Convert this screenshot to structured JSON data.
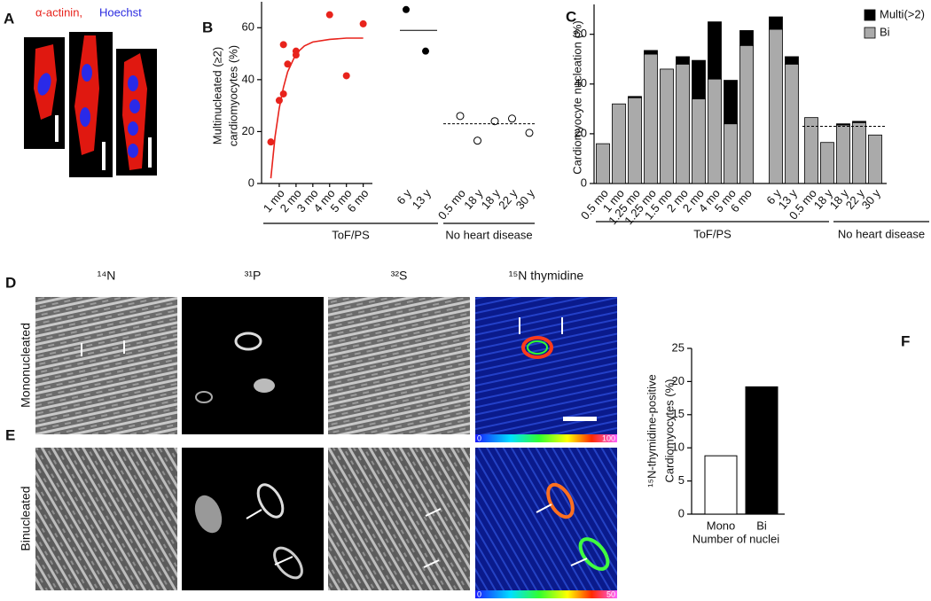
{
  "panel_labels": [
    "A",
    "B",
    "C",
    "D",
    "E",
    "F"
  ],
  "panel_a": {
    "stain_1": "α-actinin,",
    "stain_2": "Hoechst"
  },
  "chart_data": [
    {
      "type": "scatter",
      "y_label": [
        "Multinucleated (≥2)",
        "cardiomyocytes (%)"
      ],
      "ylim": [
        0,
        70
      ],
      "yticks": [
        0,
        20,
        40,
        60
      ],
      "infants": {
        "color": "#e8231c",
        "xlim": [
          0,
          6.6
        ],
        "xticks": [
          {
            "value": 1,
            "label": "1 mo"
          },
          {
            "value": 2,
            "label": "2 mo"
          },
          {
            "value": 3,
            "label": "3 mo"
          },
          {
            "value": 4,
            "label": "4 mo"
          },
          {
            "value": 5,
            "label": "5 mo"
          },
          {
            "value": 6,
            "label": "6 mo"
          }
        ],
        "x": [
          0.5,
          1,
          1.25,
          1.25,
          1.5,
          2,
          2,
          4,
          5,
          6
        ],
        "values": [
          16,
          32,
          34.5,
          53.5,
          46,
          51,
          49.5,
          65,
          41.5,
          61.5
        ],
        "fit": {
          "x": [
            0.5,
            0.75,
            1,
            1.25,
            1.5,
            2,
            2.5,
            3,
            4,
            5,
            6
          ],
          "values": [
            2,
            18,
            29,
            37,
            43,
            50,
            53,
            54.5,
            55.5,
            56,
            56
          ]
        }
      },
      "older": {
        "color": "#000000",
        "categories": [
          "6 y",
          "13 y"
        ],
        "values": [
          67,
          51
        ],
        "mean": 59
      },
      "controls": {
        "categories": [
          "0.5 mo",
          "18 y",
          "18 y",
          "22 y",
          "30 y"
        ],
        "values": [
          26,
          16.5,
          24,
          25,
          19.5
        ],
        "mean": 23
      },
      "groups": [
        "ToF/PS",
        "No heart disease"
      ]
    },
    {
      "type": "bar",
      "stacked": true,
      "y_label": "Cardiomyocyte nucleation (%)",
      "ylim": [
        0,
        72
      ],
      "yticks": [
        0,
        20,
        40,
        60
      ],
      "categories": [
        "0.5 mo",
        "1 mo",
        "1.25 mo",
        "1.25 mo",
        "1.5 mo",
        "2 mo",
        "2 mo",
        "4 mo",
        "5 mo",
        "6 mo",
        "6 y",
        "13 y",
        "0.5 mo",
        "18 y",
        "18 y",
        "22 y",
        "30 y"
      ],
      "series": [
        {
          "name": "Multi(>2)",
          "color": "#000000",
          "values": [
            0,
            0,
            0.5,
            1.5,
            0,
            3,
            15.5,
            23,
            17.5,
            6,
            5,
            3,
            0,
            0,
            0.5,
            0.5,
            0
          ]
        },
        {
          "name": "Bi",
          "color": "#aaaaaa",
          "values": [
            16,
            32,
            34.5,
            52,
            46,
            48,
            34,
            42,
            24,
            55.5,
            62,
            48,
            26.5,
            16.5,
            23.5,
            24.5,
            19.5
          ]
        }
      ],
      "reference_line": 23,
      "groups": [
        "ToF/PS",
        "No heart disease"
      ]
    },
    {
      "type": "bar",
      "y_label": [
        "¹⁵N-thymidine-positive",
        "Cardiomyocytes (%)"
      ],
      "x_label": "Number of nuclei",
      "categories": [
        "Mono",
        "Bi"
      ],
      "values": [
        8.8,
        19.2
      ],
      "colors": [
        "#ffffff",
        "#000000"
      ],
      "ylim": [
        0,
        25
      ],
      "yticks": [
        0,
        5,
        10,
        15,
        20,
        25
      ]
    }
  ],
  "imaging": {
    "columns": [
      "¹⁴N",
      "³¹P",
      "³²S",
      "¹⁵N thymidine"
    ],
    "rows": [
      {
        "label": "Mononucleated",
        "scale_min": 0,
        "scale_max": 100
      },
      {
        "label": "Binucleated",
        "scale_min": 0,
        "scale_max": 50
      }
    ]
  }
}
